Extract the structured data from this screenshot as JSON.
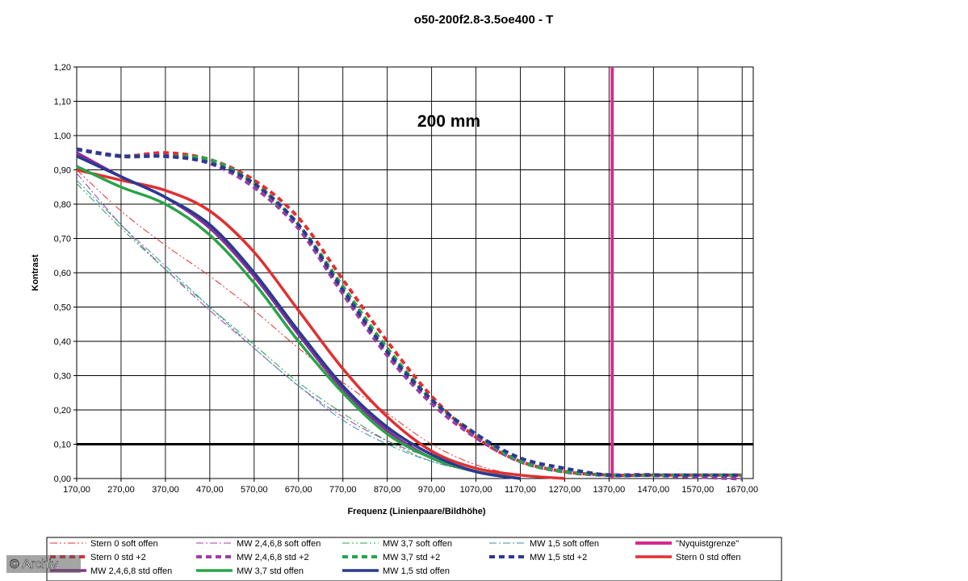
{
  "watermark": "© Archiv",
  "chart_data": {
    "type": "line",
    "title": "o50-200f2.8-3.5oe400 - T",
    "annotation": "200 mm",
    "xlabel": "Frequenz (Linienpaare/Bildhöhe)",
    "ylabel": "Kontrast",
    "xlim": [
      170,
      1695
    ],
    "ylim": [
      0,
      1.2
    ],
    "x_ticks": [
      "170,00",
      "270,00",
      "370,00",
      "470,00",
      "570,00",
      "670,00",
      "770,00",
      "870,00",
      "970,00",
      "1070,00",
      "1170,00",
      "1270,00",
      "1370,00",
      "1470,00",
      "1570,00",
      "1670,00"
    ],
    "y_ticks": [
      "0,00",
      "0,10",
      "0,20",
      "0,30",
      "0,40",
      "0,50",
      "0,60",
      "0,70",
      "0,80",
      "0,90",
      "1,00",
      "1,10",
      "1,20"
    ],
    "grid": true,
    "legend_position": "bottom",
    "threshold_line": {
      "y": 0.1,
      "color": "#000000"
    },
    "nyquist": {
      "name": "\"Nyquistgrenze\"",
      "x": 1377,
      "color": "#d62b8c"
    },
    "series": [
      {
        "name": "Stern 0 soft offen",
        "color": "#e03030",
        "style": "dashdotdot",
        "width": 1,
        "points": [
          [
            170,
            0.9
          ],
          [
            270,
            0.78
          ],
          [
            370,
            0.68
          ],
          [
            470,
            0.59
          ],
          [
            570,
            0.49
          ],
          [
            670,
            0.38
          ],
          [
            770,
            0.28
          ],
          [
            870,
            0.19
          ],
          [
            970,
            0.1
          ],
          [
            1070,
            0.04
          ],
          [
            1170,
            0.01
          ],
          [
            1270,
            0.0
          ]
        ]
      },
      {
        "name": "MW 2,4,6,8 soft offen",
        "color": "#9b3fa5",
        "style": "dashdot",
        "width": 1,
        "points": [
          [
            170,
            0.89
          ],
          [
            270,
            0.74
          ],
          [
            370,
            0.61
          ],
          [
            470,
            0.49
          ],
          [
            570,
            0.38
          ],
          [
            670,
            0.27
          ],
          [
            770,
            0.18
          ],
          [
            870,
            0.11
          ],
          [
            970,
            0.06
          ],
          [
            1070,
            0.02
          ],
          [
            1170,
            0.0
          ]
        ]
      },
      {
        "name": "MW 3,7 soft offen",
        "color": "#2aa34a",
        "style": "dashdotdot",
        "width": 1,
        "points": [
          [
            170,
            0.86
          ],
          [
            270,
            0.73
          ],
          [
            370,
            0.61
          ],
          [
            470,
            0.5
          ],
          [
            570,
            0.39
          ],
          [
            670,
            0.28
          ],
          [
            770,
            0.19
          ],
          [
            870,
            0.11
          ],
          [
            970,
            0.05
          ],
          [
            1070,
            0.02
          ],
          [
            1170,
            0.0
          ]
        ]
      },
      {
        "name": "MW 1,5 soft offen",
        "color": "#3a8fa8",
        "style": "dashdot",
        "width": 1,
        "points": [
          [
            170,
            0.87
          ],
          [
            270,
            0.74
          ],
          [
            370,
            0.62
          ],
          [
            470,
            0.5
          ],
          [
            570,
            0.38
          ],
          [
            670,
            0.27
          ],
          [
            770,
            0.17
          ],
          [
            870,
            0.1
          ],
          [
            970,
            0.05
          ],
          [
            1070,
            0.02
          ],
          [
            1170,
            0.0
          ]
        ]
      },
      {
        "name": "Stern 0 std +2",
        "color": "#e03030",
        "style": "dashed-thick",
        "width": 4,
        "points": [
          [
            170,
            0.96
          ],
          [
            270,
            0.94
          ],
          [
            370,
            0.95
          ],
          [
            470,
            0.93
          ],
          [
            570,
            0.87
          ],
          [
            670,
            0.76
          ],
          [
            770,
            0.58
          ],
          [
            870,
            0.4
          ],
          [
            970,
            0.24
          ],
          [
            1070,
            0.12
          ],
          [
            1170,
            0.05
          ],
          [
            1270,
            0.02
          ],
          [
            1370,
            0.01
          ],
          [
            1470,
            0.01
          ],
          [
            1670,
            0.01
          ]
        ]
      },
      {
        "name": "MW 2,4,6,8 std +2",
        "color": "#9b3fa5",
        "style": "dashed-thick",
        "width": 5,
        "points": [
          [
            170,
            0.96
          ],
          [
            270,
            0.94
          ],
          [
            370,
            0.94
          ],
          [
            470,
            0.92
          ],
          [
            570,
            0.85
          ],
          [
            670,
            0.73
          ],
          [
            770,
            0.54
          ],
          [
            870,
            0.36
          ],
          [
            970,
            0.22
          ],
          [
            1070,
            0.12
          ],
          [
            1170,
            0.05
          ],
          [
            1270,
            0.02
          ],
          [
            1370,
            0.01
          ],
          [
            1470,
            0.01
          ],
          [
            1670,
            0.0
          ]
        ]
      },
      {
        "name": "MW 3,7 std +2",
        "color": "#2aa34a",
        "style": "dashed-thick",
        "width": 4,
        "points": [
          [
            170,
            0.96
          ],
          [
            270,
            0.94
          ],
          [
            370,
            0.94
          ],
          [
            470,
            0.93
          ],
          [
            570,
            0.86
          ],
          [
            670,
            0.74
          ],
          [
            770,
            0.56
          ],
          [
            870,
            0.38
          ],
          [
            970,
            0.23
          ],
          [
            1070,
            0.13
          ],
          [
            1170,
            0.05
          ],
          [
            1270,
            0.02
          ],
          [
            1370,
            0.01
          ],
          [
            1470,
            0.01
          ],
          [
            1670,
            0.01
          ]
        ]
      },
      {
        "name": "MW 1,5 std +2",
        "color": "#2b3a8f",
        "style": "dashed-thick",
        "width": 4,
        "points": [
          [
            170,
            0.96
          ],
          [
            270,
            0.94
          ],
          [
            370,
            0.94
          ],
          [
            470,
            0.92
          ],
          [
            570,
            0.86
          ],
          [
            670,
            0.74
          ],
          [
            770,
            0.55
          ],
          [
            870,
            0.37
          ],
          [
            970,
            0.23
          ],
          [
            1070,
            0.13
          ],
          [
            1170,
            0.06
          ],
          [
            1270,
            0.03
          ],
          [
            1370,
            0.01
          ],
          [
            1470,
            0.01
          ],
          [
            1670,
            0.01
          ]
        ]
      },
      {
        "name": "Stern 0 std offen",
        "color": "#e03030",
        "style": "solid",
        "width": 3.5,
        "points": [
          [
            170,
            0.9
          ],
          [
            270,
            0.87
          ],
          [
            370,
            0.84
          ],
          [
            470,
            0.78
          ],
          [
            570,
            0.66
          ],
          [
            670,
            0.49
          ],
          [
            770,
            0.32
          ],
          [
            870,
            0.18
          ],
          [
            970,
            0.08
          ],
          [
            1070,
            0.03
          ],
          [
            1170,
            0.01
          ],
          [
            1270,
            0.0
          ]
        ]
      },
      {
        "name": "MW 2,4,6,8 std offen",
        "color": "#8a2f98",
        "style": "solid",
        "width": 3.5,
        "points": [
          [
            170,
            0.95
          ],
          [
            270,
            0.88
          ],
          [
            370,
            0.82
          ],
          [
            470,
            0.73
          ],
          [
            570,
            0.59
          ],
          [
            670,
            0.42
          ],
          [
            770,
            0.26
          ],
          [
            870,
            0.14
          ],
          [
            970,
            0.06
          ],
          [
            1070,
            0.02
          ],
          [
            1170,
            0.0
          ]
        ]
      },
      {
        "name": "MW 3,7 std offen",
        "color": "#2aa34a",
        "style": "solid",
        "width": 3.5,
        "points": [
          [
            170,
            0.91
          ],
          [
            270,
            0.85
          ],
          [
            370,
            0.8
          ],
          [
            470,
            0.71
          ],
          [
            570,
            0.57
          ],
          [
            670,
            0.4
          ],
          [
            770,
            0.25
          ],
          [
            870,
            0.13
          ],
          [
            970,
            0.06
          ],
          [
            1070,
            0.02
          ],
          [
            1170,
            0.0
          ]
        ]
      },
      {
        "name": "MW 1,5 std offen",
        "color": "#2b3a8f",
        "style": "solid",
        "width": 3.5,
        "points": [
          [
            170,
            0.94
          ],
          [
            270,
            0.88
          ],
          [
            370,
            0.82
          ],
          [
            470,
            0.74
          ],
          [
            570,
            0.6
          ],
          [
            670,
            0.43
          ],
          [
            770,
            0.27
          ],
          [
            870,
            0.15
          ],
          [
            970,
            0.07
          ],
          [
            1070,
            0.02
          ],
          [
            1170,
            0.0
          ]
        ]
      }
    ]
  }
}
